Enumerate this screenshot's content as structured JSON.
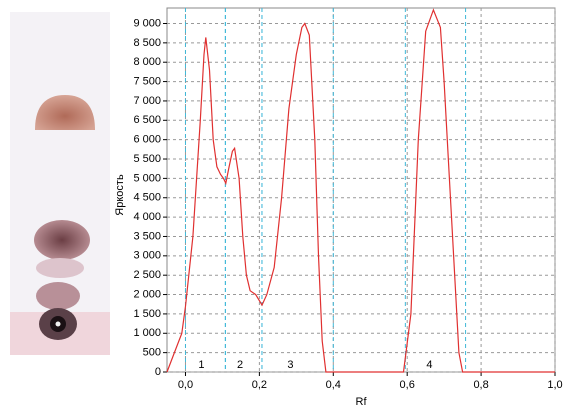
{
  "chart_data": {
    "type": "line",
    "xlabel": "Rf",
    "ylabel": "Яркость",
    "xlim": [
      -0.05,
      1.0
    ],
    "xticks": [
      {
        "value": 0.0,
        "label": "0,0"
      },
      {
        "value": 0.2,
        "label": "0,2"
      },
      {
        "value": 0.4,
        "label": "0,4"
      },
      {
        "value": 0.6,
        "label": "0,6"
      },
      {
        "value": 0.8,
        "label": "0,8"
      },
      {
        "value": 1.0,
        "label": "1,0"
      }
    ],
    "ylim": [
      0,
      9400
    ],
    "yticks": [
      0,
      500,
      {
        "value": 1000,
        "label": "1 000"
      },
      {
        "value": 1500,
        "label": "1 500"
      },
      {
        "value": 2000,
        "label": "2 000"
      },
      {
        "value": 2500,
        "label": "2 500"
      },
      {
        "value": 3000,
        "label": "3 000"
      },
      {
        "value": 3500,
        "label": "3 500"
      },
      {
        "value": 4000,
        "label": "4 000"
      },
      {
        "value": 4500,
        "label": "4 500"
      },
      {
        "value": 5000,
        "label": "5 000"
      },
      {
        "value": 5500,
        "label": "5 500"
      },
      {
        "value": 6000,
        "label": "6 000"
      },
      {
        "value": 6500,
        "label": "6 500"
      },
      {
        "value": 7000,
        "label": "7 000"
      },
      {
        "value": 7500,
        "label": "7 500"
      },
      {
        "value": 8000,
        "label": "8 000"
      },
      {
        "value": 8500,
        "label": "8 500"
      },
      {
        "value": 9000,
        "label": "9 000"
      }
    ],
    "grid": true,
    "zones": [
      {
        "label": "1",
        "start": 0.0,
        "end": 0.108
      },
      {
        "label": "2",
        "start": 0.108,
        "end": 0.207
      },
      {
        "label": "3",
        "start": 0.207,
        "end": 0.4
      },
      {
        "label": "4",
        "start": 0.595,
        "end": 0.758
      }
    ],
    "series": [
      {
        "color": "#e03030",
        "x": [
          -0.05,
          -0.03,
          -0.01,
          0.0,
          0.02,
          0.04,
          0.05,
          0.055,
          0.065,
          0.075,
          0.085,
          0.095,
          0.103,
          0.109,
          0.118,
          0.127,
          0.133,
          0.145,
          0.155,
          0.165,
          0.175,
          0.19,
          0.207,
          0.22,
          0.24,
          0.26,
          0.28,
          0.3,
          0.315,
          0.323,
          0.335,
          0.35,
          0.36,
          0.37,
          0.38,
          0.59,
          0.61,
          0.63,
          0.65,
          0.671,
          0.69,
          0.7,
          0.72,
          0.74,
          0.75,
          1.0
        ],
        "values": [
          0,
          500,
          1000,
          1700,
          3500,
          6500,
          8200,
          8640,
          7800,
          6000,
          5300,
          5100,
          5000,
          4874,
          5300,
          5700,
          5776,
          5000,
          3500,
          2500,
          2100,
          2000,
          1728,
          2000,
          2700,
          4500,
          6800,
          8200,
          8900,
          9000,
          8700,
          6000,
          3000,
          800,
          0,
          0,
          1500,
          6000,
          8800,
          9350,
          8900,
          7500,
          4000,
          500,
          0,
          0
        ]
      }
    ]
  }
}
